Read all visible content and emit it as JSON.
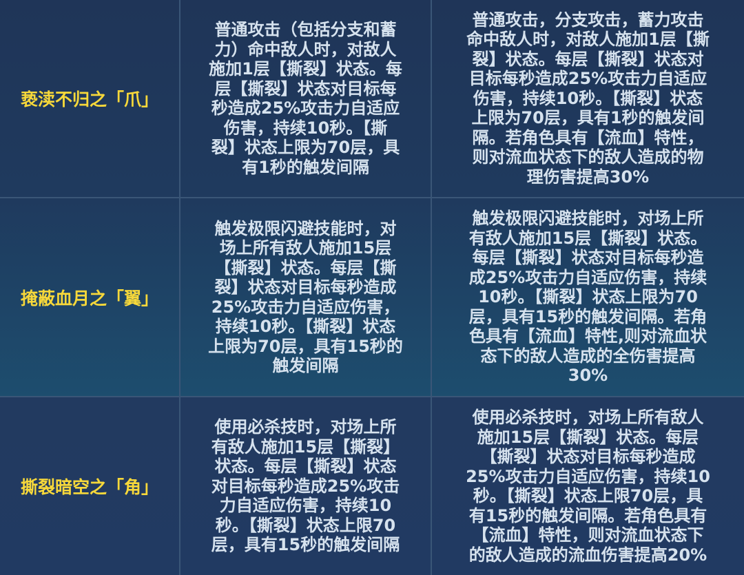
{
  "rows": [
    {
      "name": "亵渎不归之「爪」",
      "effect": [
        "普通攻击（包括分支和蓄",
        "力）命中敌人时，对敌人",
        "施加1层【撕裂】状态。每",
        "层【撕裂】状态对目标每",
        "秒造成25%攻击力自适应",
        "伤害，持续10秒。【撕",
        "裂】状态上限为70层，具",
        "有1秒的触发间隔"
      ],
      "enhanced": [
        "普通攻击，分支攻击，蓄力攻击",
        "命中敌人时，对敌人施加1层【撕",
        "裂】状态。每层【撕裂】状态对",
        "目标每秒造成25%攻击力自适应",
        "伤害，持续10秒。【撕裂】状态",
        "上限为70层，具有1秒的触发间",
        "隔。若角色具有【流血】特性，",
        "则对流血状态下的敌人造成的物",
        "理伤害提高30%"
      ]
    },
    {
      "name": "掩蔽血月之「翼」",
      "effect": [
        "触发极限闪避技能时，对",
        "场上所有敌人施加15层",
        "【撕裂】状态。每层【撕",
        "裂】状态对目标每秒造成",
        "25%攻击力自适应伤害，",
        "持续10秒。【撕裂】状态",
        "上限为70层，具有15秒的",
        "触发间隔"
      ],
      "enhanced": [
        "触发极限闪避技能时，对场上所",
        "有敌人施加15层【撕裂】状态。",
        "每层【撕裂】状态对目标每秒造",
        "成25%攻击力自适应伤害，持续",
        "10秒。【撕裂】状态上限为70",
        "层，具有15秒的触发间隔。若角",
        "色具有【流血】特性,则对流血状",
        "态下的敌人造成的全伤害提高",
        "30%"
      ]
    },
    {
      "name": "撕裂暗空之「角」",
      "effect": [
        "使用必杀技时，对场上所",
        "有敌人施加15层【撕裂】",
        "状态。每层【撕裂】状态",
        "对目标每秒造成25%攻击",
        "力自适应伤害，持续10",
        "秒。【撕裂】状态上限70",
        "层，具有15秒的触发间隔"
      ],
      "enhanced": [
        "使用必杀技时，对场上所有敌人",
        "施加15层【撕裂】状态。每层",
        "【撕裂】状态对目标每秒造成",
        "25%攻击力自适应伤害，持续10",
        "秒。【撕裂】状态上限70层，具",
        "有15秒的触发间隔。若角色具有",
        "【流血】特性，则对流血状态下",
        "的敌人造成的流血伤害提高20%"
      ]
    }
  ],
  "colors": {
    "name": "#f7d83a",
    "text": "#d6e2ee",
    "background": "#1f3558",
    "grid": "#3a5677"
  }
}
